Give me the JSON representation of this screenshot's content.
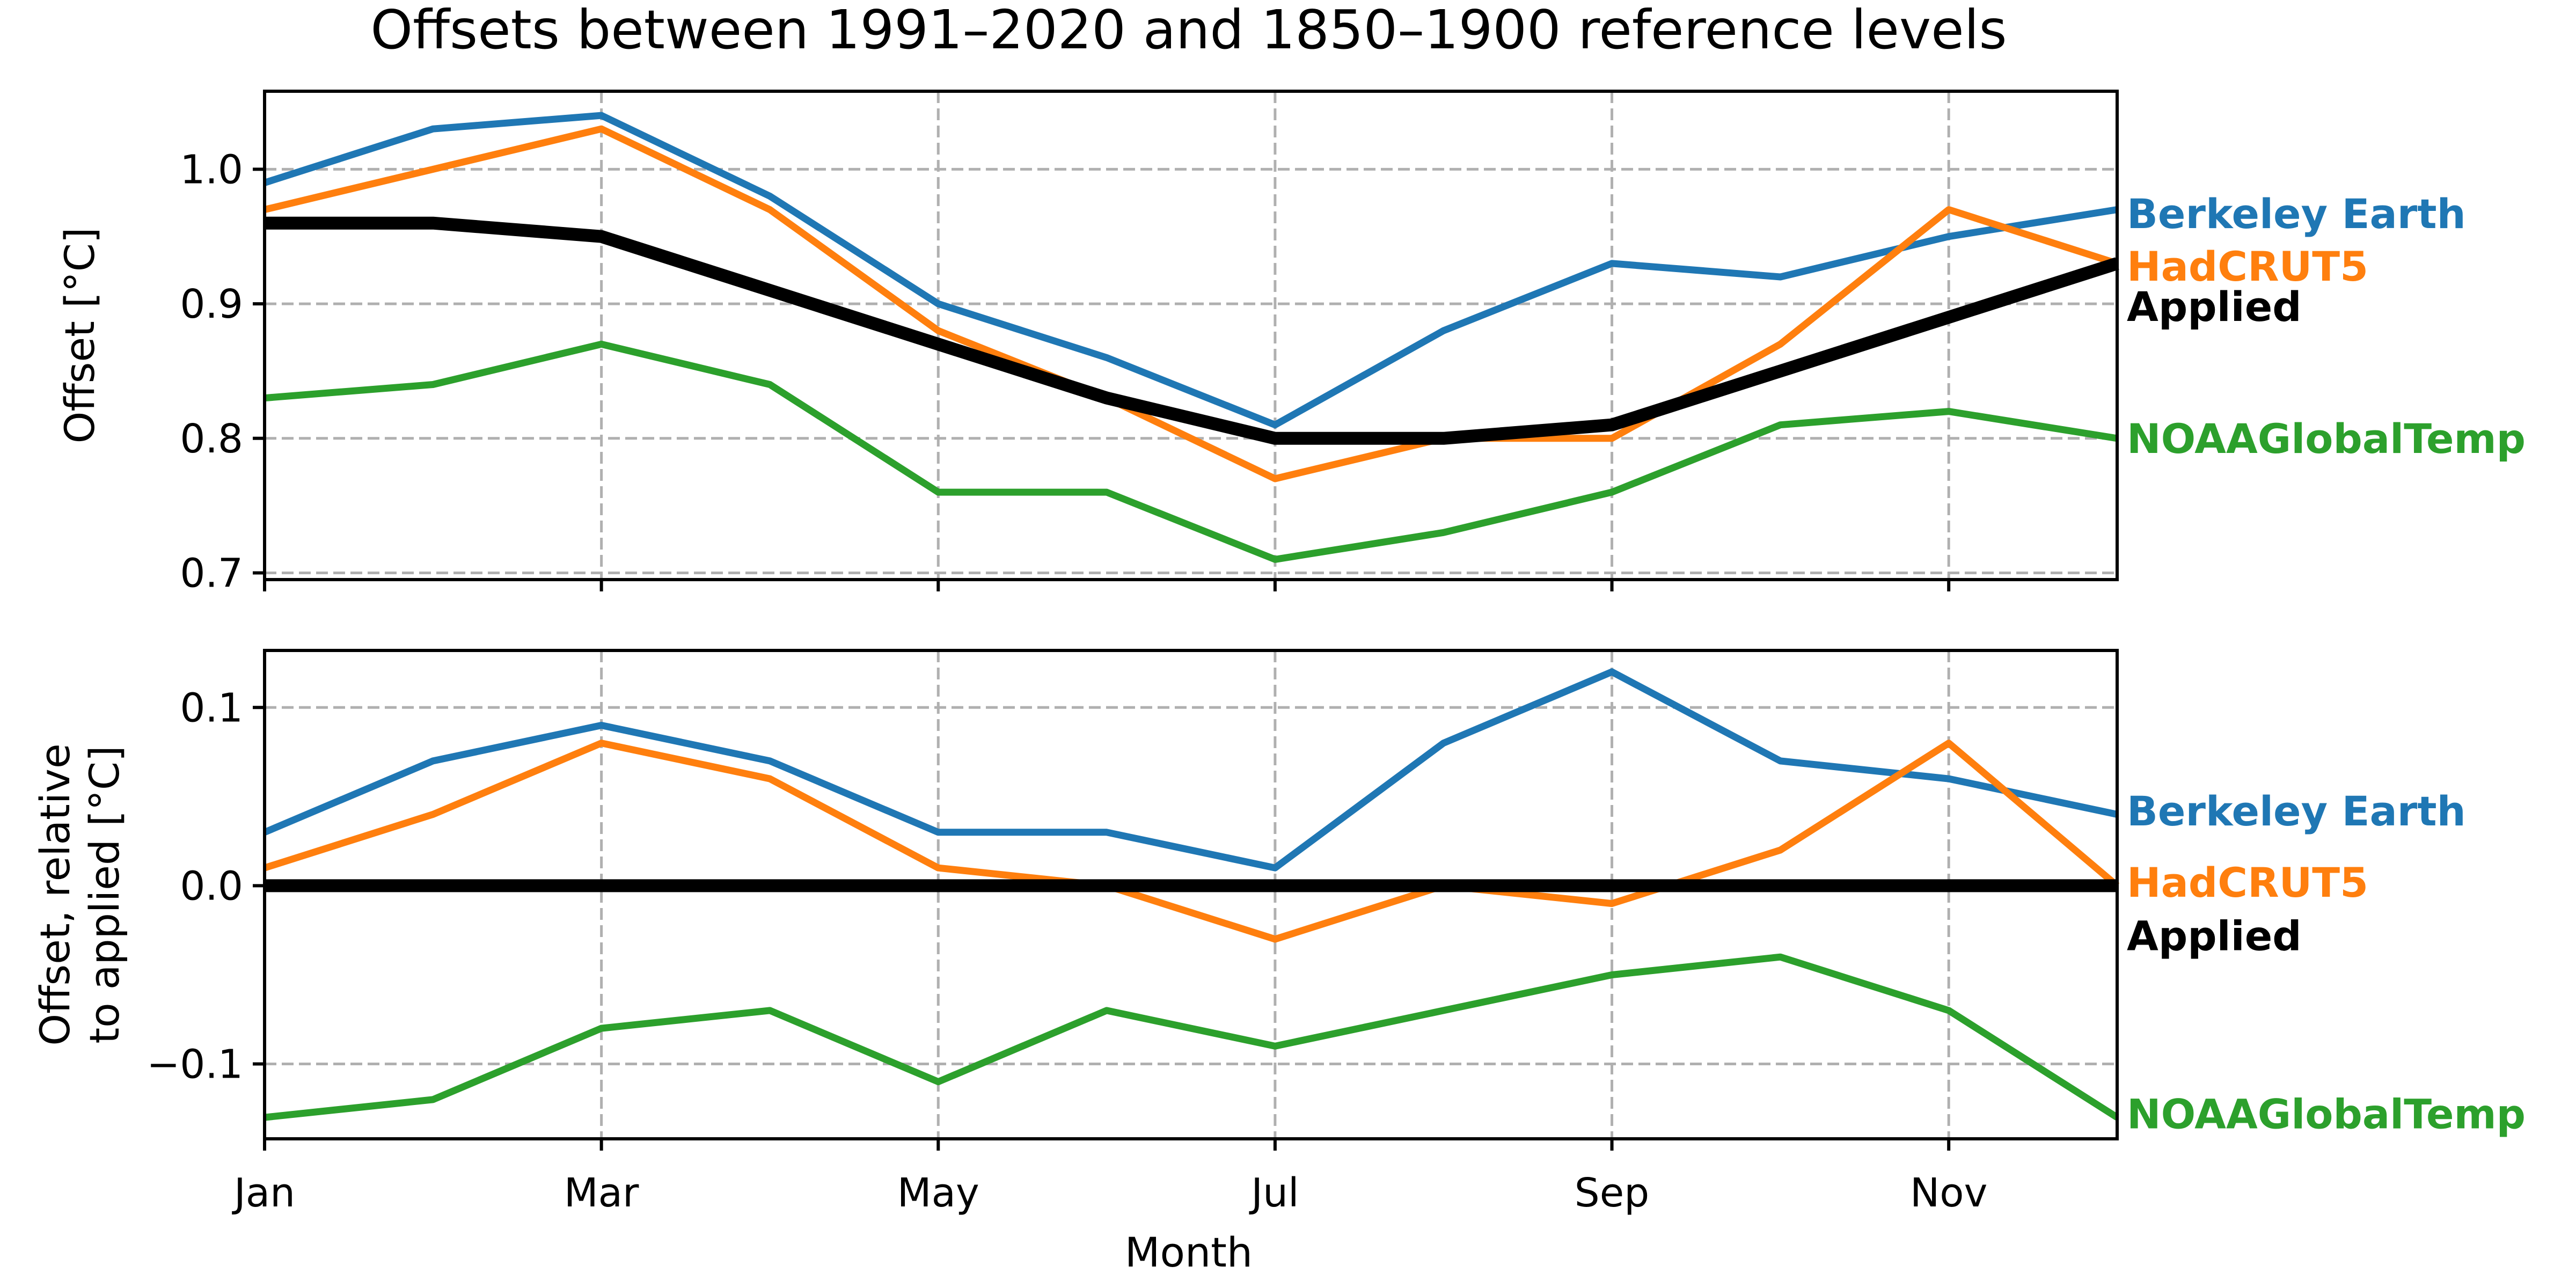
{
  "chart_data": {
    "type": "line",
    "title": "Offsets between 1991–2020 and 1850–1900 reference levels",
    "xlabel": "Month",
    "x": [
      1,
      2,
      3,
      4,
      5,
      6,
      7,
      8,
      9,
      10,
      11,
      12
    ],
    "xticks": [
      1,
      3,
      5,
      7,
      9,
      11
    ],
    "xticklabels": [
      "Jan",
      "Mar",
      "May",
      "Jul",
      "Sep",
      "Nov"
    ],
    "xlim": [
      1,
      12
    ],
    "grid": true,
    "legend": "inline labels at right end of lines",
    "panels": [
      {
        "ylabel": [
          "Offset [°C]"
        ],
        "ylim": [
          0.695,
          1.058
        ],
        "yticks": [
          0.7,
          0.8,
          0.9,
          1.0
        ],
        "yticklabels": [
          "0.7",
          "0.8",
          "0.9",
          "1.0"
        ],
        "series": [
          {
            "name": "Berkeley Earth",
            "color": "#1f77b4",
            "width": 13,
            "values": [
              0.99,
              1.03,
              1.04,
              0.98,
              0.9,
              0.86,
              0.81,
              0.88,
              0.93,
              0.92,
              0.95,
              0.97
            ],
            "label_value": 0.967
          },
          {
            "name": "HadCRUT5",
            "color": "#ff7f0e",
            "width": 13,
            "values": [
              0.97,
              1.0,
              1.03,
              0.97,
              0.88,
              0.83,
              0.77,
              0.8,
              0.8,
              0.87,
              0.97,
              0.93
            ],
            "label_value": 0.928
          },
          {
            "name": "NOAAGlobalTemp",
            "color": "#2ca02c",
            "width": 13,
            "values": [
              0.83,
              0.84,
              0.87,
              0.84,
              0.76,
              0.76,
              0.71,
              0.73,
              0.76,
              0.81,
              0.82,
              0.8
            ],
            "label_value": 0.8
          },
          {
            "name": "Applied",
            "color": "#000000",
            "width": 24,
            "values": [
              0.96,
              0.96,
              0.95,
              0.91,
              0.87,
              0.83,
              0.8,
              0.8,
              0.81,
              0.85,
              0.89,
              0.93
            ],
            "label_value": 0.898
          }
        ]
      },
      {
        "ylabel": [
          "Offset, relative",
          "to applied [°C]"
        ],
        "ylim": [
          -0.142,
          0.132
        ],
        "yticks": [
          -0.1,
          0.0,
          0.1
        ],
        "yticklabels": [
          "−0.1",
          "0.0",
          "0.1"
        ],
        "series": [
          {
            "name": "Berkeley Earth",
            "color": "#1f77b4",
            "width": 13,
            "values": [
              0.03,
              0.07,
              0.09,
              0.07,
              0.03,
              0.03,
              0.01,
              0.08,
              0.12,
              0.07,
              0.06,
              0.04
            ],
            "label_value": 0.042
          },
          {
            "name": "HadCRUT5",
            "color": "#ff7f0e",
            "width": 13,
            "values": [
              0.01,
              0.04,
              0.08,
              0.06,
              0.01,
              0.0,
              -0.03,
              0.0,
              -0.01,
              0.02,
              0.08,
              0.0
            ],
            "label_value": 0.002
          },
          {
            "name": "NOAAGlobalTemp",
            "color": "#2ca02c",
            "width": 13,
            "values": [
              -0.13,
              -0.12,
              -0.08,
              -0.07,
              -0.11,
              -0.07,
              -0.09,
              -0.07,
              -0.05,
              -0.04,
              -0.07,
              -0.13
            ],
            "label_value": -0.128
          },
          {
            "name": "Applied",
            "color": "#000000",
            "width": 24,
            "values": [
              0,
              0,
              0,
              0,
              0,
              0,
              0,
              0,
              0,
              0,
              0,
              0
            ],
            "label_value": -0.028
          }
        ]
      }
    ]
  }
}
